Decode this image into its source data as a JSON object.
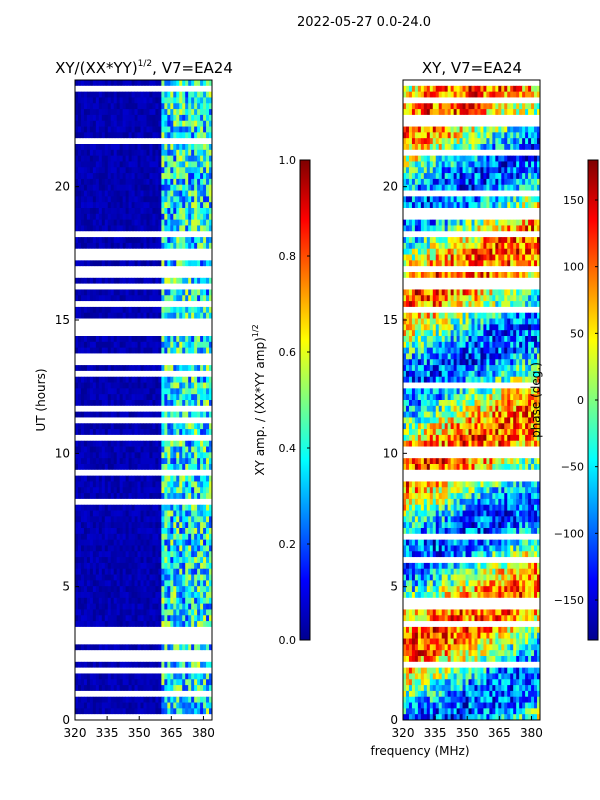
{
  "figure": {
    "suptitle": "2022-05-27 0.0-24.0",
    "xlabel_shared": "frequency (MHz)"
  },
  "chart_data": [
    {
      "type": "heatmap",
      "title": "XY/(XX*YY)^1/2, V7=EA24",
      "title_main": "XY/(XX*YY)",
      "title_sup": "1/2",
      "title_tail": ", V7=EA24",
      "xlabel": "",
      "ylabel": "UT (hours)",
      "xlim": [
        320,
        384
      ],
      "ylim": [
        0,
        24
      ],
      "xticks": [
        320,
        335,
        350,
        365,
        380
      ],
      "yticks": [
        0,
        5,
        10,
        15,
        20
      ],
      "colorbar": {
        "label": "XY amp. / (XX*YY amp)^1/2",
        "label_main": "XY amp. / (XX*YY amp)",
        "label_sup": "1/2",
        "range": [
          0.0,
          1.0
        ],
        "ticks": [
          "0.0",
          "0.2",
          "0.4",
          "0.6",
          "0.8",
          "1.0"
        ],
        "colormap": "jet"
      }
    },
    {
      "type": "heatmap",
      "title": "XY, V7=EA24",
      "xlabel": "frequency (MHz)",
      "ylabel": "",
      "xlim": [
        320,
        384
      ],
      "ylim": [
        0,
        24
      ],
      "xticks": [
        320,
        335,
        350,
        365,
        380
      ],
      "yticks": [
        0,
        5,
        10,
        15,
        20
      ],
      "colorbar": {
        "label": "phase (deg.)",
        "range": [
          -180,
          180
        ],
        "ticks": [
          "150",
          "100",
          "50",
          "0",
          "−50",
          "−100",
          "−150"
        ],
        "colormap": "jet"
      }
    }
  ]
}
